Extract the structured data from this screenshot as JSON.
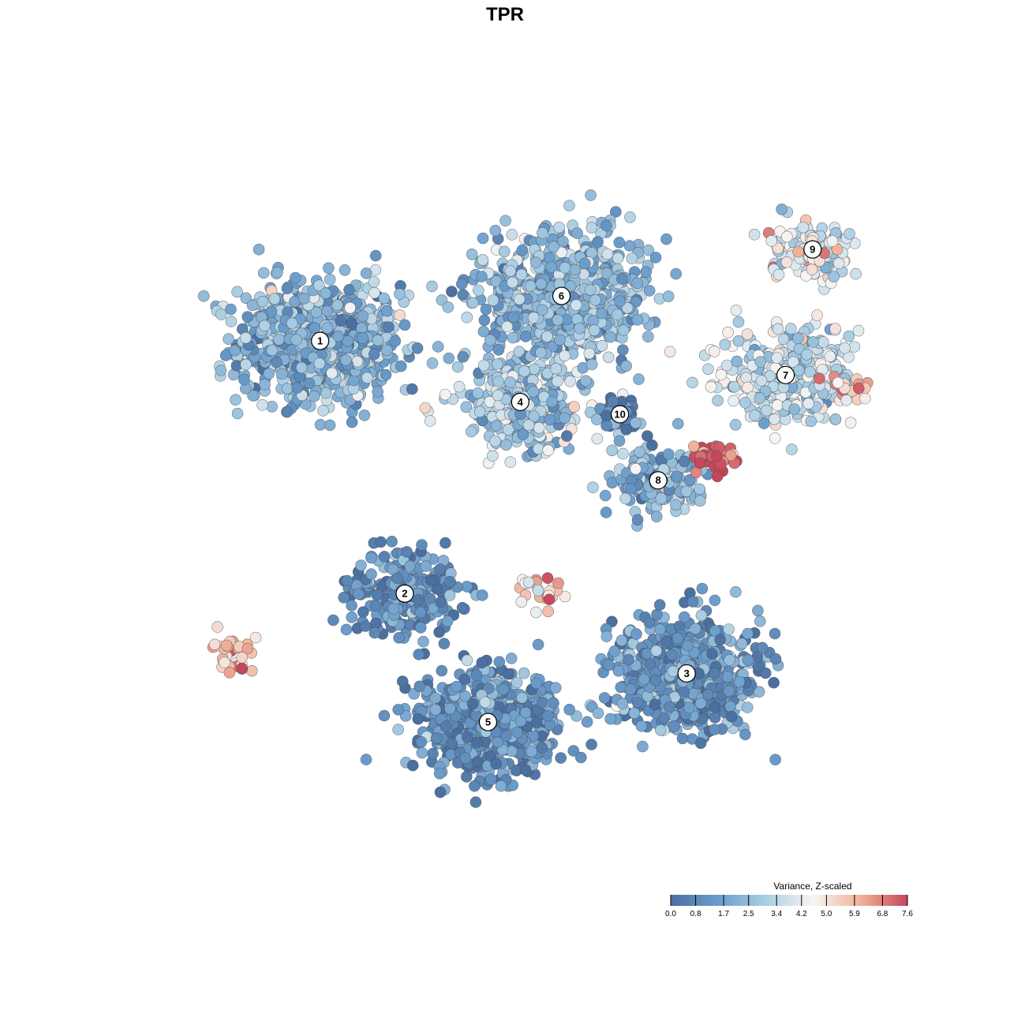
{
  "chart_data": {
    "type": "scatter",
    "title": "TPR",
    "xlabel": "",
    "ylabel": "",
    "grid": false,
    "color_scale": {
      "title": "Variance, Z-scaled",
      "ticks": [
        "0.0",
        "0.8",
        "1.7",
        "2.5",
        "3.4",
        "4.2",
        "5.0",
        "5.9",
        "6.8",
        "7.6"
      ],
      "range": [
        0.0,
        7.6
      ],
      "colors": [
        "#4a6fa0",
        "#6a9ccb",
        "#a9cde3",
        "#f7f5f4",
        "#f2b29a",
        "#c6465a"
      ],
      "placement": "bottom-right"
    },
    "clusters": [
      {
        "label": "1",
        "x": 0.227,
        "y": 0.726,
        "spread": 0.12,
        "n": 900,
        "mean": 2.3
      },
      {
        "label": "2",
        "x": 0.34,
        "y": 0.378,
        "spread": 0.08,
        "n": 260,
        "mean": 1.1
      },
      {
        "label": "3",
        "x": 0.716,
        "y": 0.268,
        "spread": 0.11,
        "n": 700,
        "mean": 1.3
      },
      {
        "label": "4",
        "x": 0.494,
        "y": 0.642,
        "spread": 0.08,
        "n": 360,
        "mean": 2.9
      },
      {
        "label": "5",
        "x": 0.451,
        "y": 0.201,
        "spread": 0.1,
        "n": 650,
        "mean": 1.2
      },
      {
        "label": "6",
        "x": 0.549,
        "y": 0.788,
        "spread": 0.12,
        "n": 800,
        "mean": 2.4
      },
      {
        "label": "7",
        "x": 0.848,
        "y": 0.679,
        "spread": 0.1,
        "n": 300,
        "mean": 3.5
      },
      {
        "label": "8",
        "x": 0.678,
        "y": 0.534,
        "spread": 0.07,
        "n": 180,
        "mean": 2.2
      },
      {
        "label": "9",
        "x": 0.884,
        "y": 0.852,
        "spread": 0.06,
        "n": 120,
        "mean": 4.0
      },
      {
        "label": "10",
        "x": 0.627,
        "y": 0.625,
        "spread": 0.03,
        "n": 60,
        "mean": 0.7
      }
    ],
    "hotspots": [
      {
        "x": 0.753,
        "y": 0.564,
        "value": 7.2,
        "n": 30
      },
      {
        "x": 0.112,
        "y": 0.294,
        "value": 5.8,
        "n": 35
      },
      {
        "x": 0.515,
        "y": 0.38,
        "value": 5.2,
        "n": 25
      },
      {
        "x": 0.93,
        "y": 0.664,
        "value": 5.6,
        "n": 20
      },
      {
        "x": 0.891,
        "y": 0.847,
        "value": 5.0,
        "n": 15
      }
    ]
  }
}
